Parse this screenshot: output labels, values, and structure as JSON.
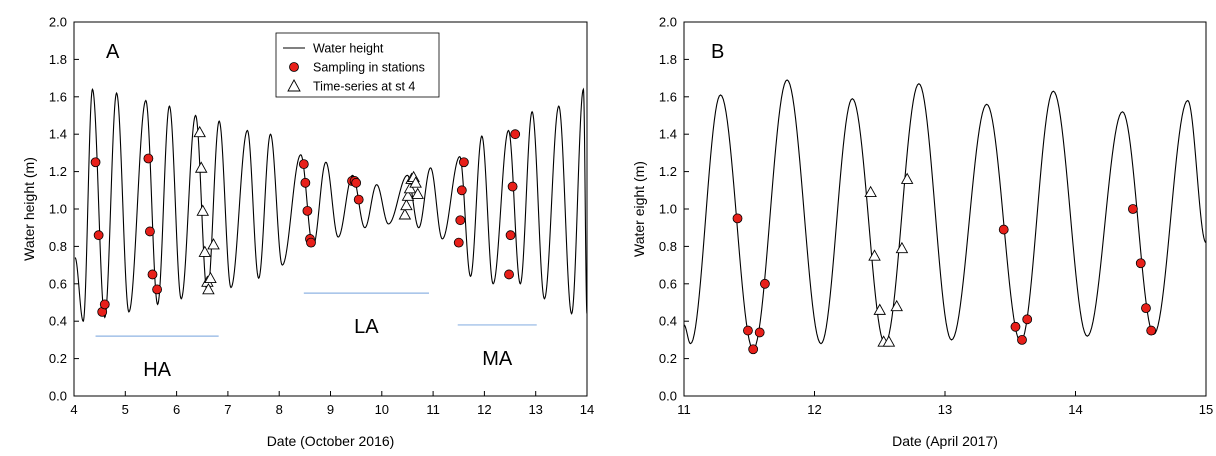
{
  "chart_data": [
    {
      "type": "line",
      "panel_label": "A",
      "xlabel": "Date (October 2016)",
      "ylabel": "Water height (m)",
      "xlim": [
        4,
        14
      ],
      "ylim": [
        0,
        2.0
      ],
      "x_ticks": [
        "4",
        "5",
        "6",
        "7",
        "8",
        "9",
        "10",
        "11",
        "12",
        "13",
        "14"
      ],
      "y_ticks": [
        "0.0",
        "0.2",
        "0.4",
        "0.6",
        "0.8",
        "1.0",
        "1.2",
        "1.4",
        "1.6",
        "1.8",
        "2.0"
      ],
      "legend": {
        "placement": "top-center",
        "entries": [
          "Water height",
          "Sampling in stations",
          "Time-series at st 4"
        ]
      },
      "water_height_peaks": [
        [
          4.02,
          0.74
        ],
        [
          4.18,
          0.4
        ],
        [
          4.36,
          1.64
        ],
        [
          4.6,
          0.42
        ],
        [
          4.83,
          1.62
        ],
        [
          5.07,
          0.45
        ],
        [
          5.4,
          1.58
        ],
        [
          5.63,
          0.49
        ],
        [
          5.86,
          1.55
        ],
        [
          6.09,
          0.52
        ],
        [
          6.37,
          1.5
        ],
        [
          6.6,
          0.55
        ],
        [
          6.83,
          1.47
        ],
        [
          7.06,
          0.58
        ],
        [
          7.38,
          1.42
        ],
        [
          7.6,
          0.63
        ],
        [
          7.83,
          1.4
        ],
        [
          8.06,
          0.7
        ],
        [
          8.42,
          1.29
        ],
        [
          8.66,
          0.8
        ],
        [
          8.91,
          1.25
        ],
        [
          9.15,
          0.85
        ],
        [
          9.43,
          1.18
        ],
        [
          9.67,
          0.9
        ],
        [
          9.9,
          1.13
        ],
        [
          10.13,
          0.92
        ],
        [
          10.5,
          1.18
        ],
        [
          10.72,
          0.9
        ],
        [
          10.95,
          1.22
        ],
        [
          11.18,
          0.84
        ],
        [
          11.52,
          1.28
        ],
        [
          11.73,
          0.64
        ],
        [
          11.95,
          1.39
        ],
        [
          12.17,
          0.6
        ],
        [
          12.47,
          1.42
        ],
        [
          12.7,
          0.6
        ],
        [
          12.93,
          1.52
        ],
        [
          13.17,
          0.52
        ],
        [
          13.45,
          1.55
        ],
        [
          13.7,
          0.44
        ],
        [
          13.93,
          1.64
        ],
        [
          14.0,
          0.44
        ]
      ],
      "sampling_points": [
        [
          4.42,
          1.25
        ],
        [
          4.48,
          0.86
        ],
        [
          4.55,
          0.45
        ],
        [
          4.6,
          0.49
        ],
        [
          5.45,
          1.27
        ],
        [
          5.48,
          0.88
        ],
        [
          5.53,
          0.65
        ],
        [
          5.62,
          0.57
        ],
        [
          8.48,
          1.24
        ],
        [
          8.51,
          1.14
        ],
        [
          8.55,
          0.99
        ],
        [
          8.6,
          0.84
        ],
        [
          8.62,
          0.82
        ],
        [
          9.42,
          1.15
        ],
        [
          9.47,
          1.15
        ],
        [
          9.5,
          1.14
        ],
        [
          9.55,
          1.05
        ],
        [
          11.5,
          0.82
        ],
        [
          11.53,
          0.94
        ],
        [
          11.56,
          1.1
        ],
        [
          11.6,
          1.25
        ],
        [
          12.48,
          0.65
        ],
        [
          12.51,
          0.86
        ],
        [
          12.55,
          1.12
        ],
        [
          12.6,
          1.4
        ]
      ],
      "time_series_points": [
        [
          6.45,
          1.41
        ],
        [
          6.48,
          1.22
        ],
        [
          6.51,
          0.99
        ],
        [
          6.55,
          0.77
        ],
        [
          6.6,
          0.61
        ],
        [
          6.62,
          0.57
        ],
        [
          6.66,
          0.63
        ],
        [
          6.72,
          0.81
        ],
        [
          10.45,
          0.97
        ],
        [
          10.48,
          1.02
        ],
        [
          10.51,
          1.07
        ],
        [
          10.55,
          1.11
        ],
        [
          10.58,
          1.16
        ],
        [
          10.62,
          1.17
        ],
        [
          10.66,
          1.14
        ],
        [
          10.7,
          1.08
        ]
      ],
      "annotations": [
        {
          "text": "HA",
          "x_range": [
            4.42,
            6.82
          ],
          "y": 0.32
        },
        {
          "text": "LA",
          "x_range": [
            8.48,
            10.92
          ],
          "y": 0.55
        },
        {
          "text": "MA",
          "x_range": [
            11.48,
            13.02
          ],
          "y": 0.38
        }
      ]
    },
    {
      "type": "line",
      "panel_label": "B",
      "xlabel": "Date (April 2017)",
      "ylabel": "Water eight (m)",
      "xlim": [
        11,
        15
      ],
      "ylim": [
        0,
        2.0
      ],
      "x_ticks": [
        "11",
        "12",
        "13",
        "14",
        "15"
      ],
      "y_ticks": [
        "0.0",
        "0.2",
        "0.4",
        "0.6",
        "0.8",
        "1.0",
        "1.2",
        "1.4",
        "1.6",
        "1.8",
        "2.0"
      ],
      "water_height_peaks": [
        [
          11.0,
          0.38
        ],
        [
          11.05,
          0.28
        ],
        [
          11.28,
          1.61
        ],
        [
          11.53,
          0.25
        ],
        [
          11.79,
          1.69
        ],
        [
          12.05,
          0.28
        ],
        [
          12.29,
          1.59
        ],
        [
          12.54,
          0.28
        ],
        [
          12.8,
          1.67
        ],
        [
          13.05,
          0.3
        ],
        [
          13.32,
          1.56
        ],
        [
          13.58,
          0.29
        ],
        [
          13.83,
          1.63
        ],
        [
          14.09,
          0.32
        ],
        [
          14.36,
          1.52
        ],
        [
          14.6,
          0.33
        ],
        [
          14.86,
          1.58
        ],
        [
          15.0,
          0.82
        ]
      ],
      "sampling_points": [
        [
          11.41,
          0.95
        ],
        [
          11.49,
          0.35
        ],
        [
          11.53,
          0.25
        ],
        [
          11.58,
          0.34
        ],
        [
          11.62,
          0.6
        ],
        [
          13.45,
          0.89
        ],
        [
          13.54,
          0.37
        ],
        [
          13.59,
          0.3
        ],
        [
          13.63,
          0.41
        ],
        [
          14.44,
          1.0
        ],
        [
          14.5,
          0.71
        ],
        [
          14.54,
          0.47
        ],
        [
          14.58,
          0.35
        ]
      ],
      "time_series_points": [
        [
          12.43,
          1.09
        ],
        [
          12.46,
          0.75
        ],
        [
          12.5,
          0.46
        ],
        [
          12.53,
          0.29
        ],
        [
          12.57,
          0.29
        ],
        [
          12.63,
          0.48
        ],
        [
          12.67,
          0.79
        ],
        [
          12.71,
          1.16
        ]
      ]
    }
  ]
}
